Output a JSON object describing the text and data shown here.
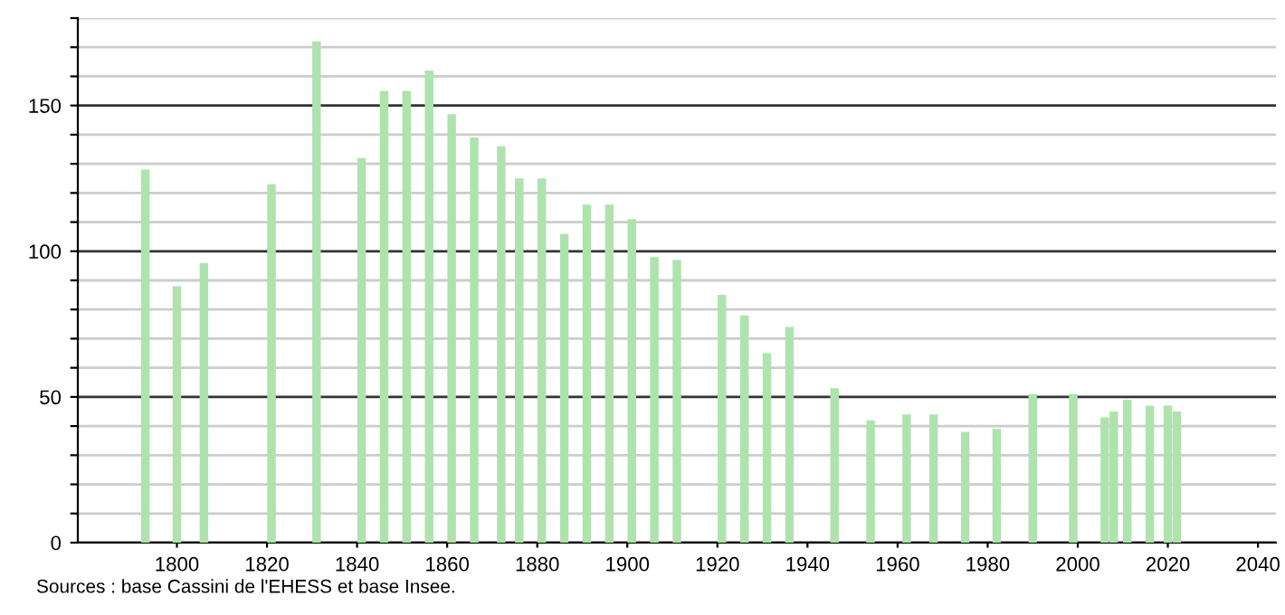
{
  "chart_data": {
    "type": "bar",
    "x": [
      1793,
      1800,
      1806,
      1821,
      1831,
      1841,
      1846,
      1851,
      1856,
      1861,
      1866,
      1872,
      1876,
      1881,
      1886,
      1891,
      1896,
      1901,
      1906,
      1911,
      1921,
      1926,
      1931,
      1936,
      1946,
      1954,
      1962,
      1968,
      1975,
      1982,
      1990,
      1999,
      2006,
      2008,
      2011,
      2016,
      2020,
      2022
    ],
    "values": [
      128,
      88,
      96,
      123,
      172,
      132,
      155,
      155,
      162,
      147,
      139,
      136,
      125,
      125,
      106,
      116,
      116,
      111,
      98,
      97,
      85,
      78,
      65,
      74,
      53,
      42,
      44,
      44,
      38,
      39,
      51,
      51,
      43,
      45,
      49,
      47,
      47,
      45
    ],
    "color": "#aee3ae",
    "xlim": [
      1778,
      2044
    ],
    "xticks": [
      1800,
      1820,
      1840,
      1860,
      1880,
      1900,
      1920,
      1940,
      1960,
      1980,
      2000,
      2020,
      2040
    ],
    "ylim": [
      0,
      180
    ],
    "yticks": [
      0,
      {
        "value": 10,
        "label": null
      },
      {
        "value": 20,
        "label": null
      },
      {
        "value": 30,
        "label": null
      },
      {
        "value": 40,
        "label": null
      },
      50,
      {
        "value": 60,
        "label": null
      },
      {
        "value": 70,
        "label": null
      },
      {
        "value": 80,
        "label": null
      },
      {
        "value": 90,
        "label": null
      },
      100,
      {
        "value": 110,
        "label": null
      },
      {
        "value": 120,
        "label": null
      },
      {
        "value": 130,
        "label": null
      },
      {
        "value": 140,
        "label": null
      },
      150,
      {
        "value": 160,
        "label": null
      },
      {
        "value": 170,
        "label": null
      },
      {
        "value": 180,
        "label": null
      }
    ],
    "grid": "y",
    "legend": false,
    "annotations": [
      "Sources : base Cassini de l'EHESS et base Insee."
    ]
  }
}
